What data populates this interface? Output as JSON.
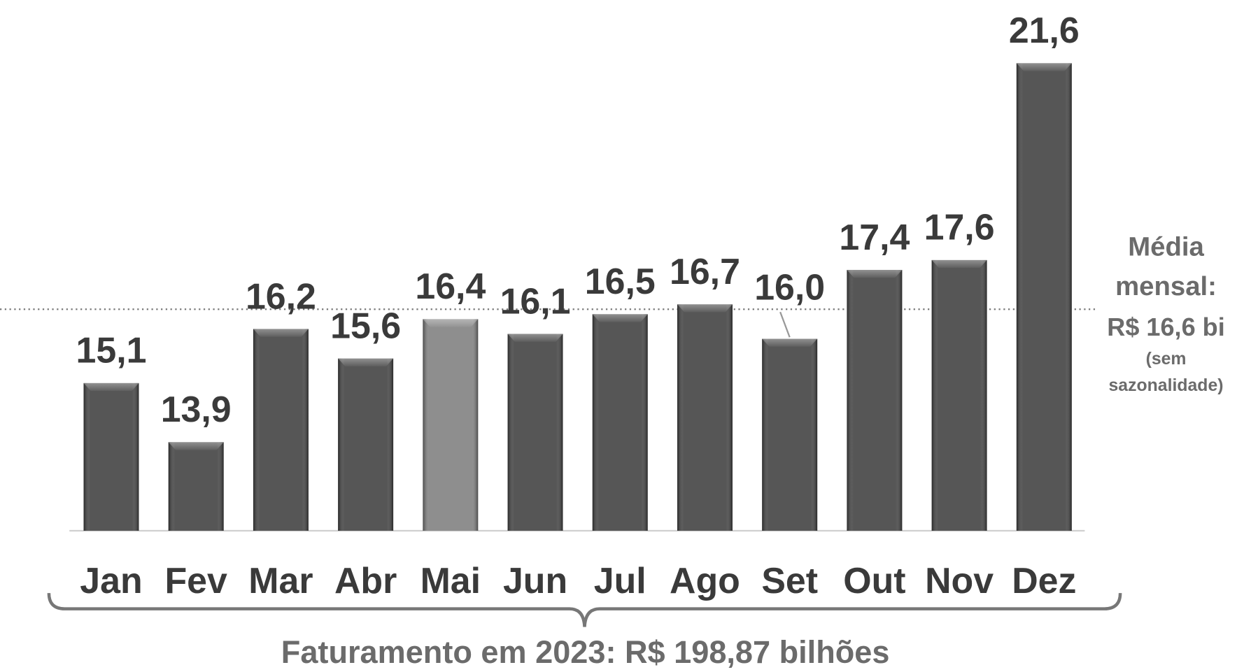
{
  "chart_data": {
    "type": "bar",
    "categories": [
      "Jan",
      "Fev",
      "Mar",
      "Abr",
      "Mai",
      "Jun",
      "Jul",
      "Ago",
      "Set",
      "Out",
      "Nov",
      "Dez"
    ],
    "values": [
      15.1,
      13.9,
      16.2,
      15.6,
      16.4,
      16.1,
      16.5,
      16.7,
      16.0,
      17.4,
      17.6,
      21.6
    ],
    "value_labels": [
      "15,1",
      "13,9",
      "16,2",
      "15,6",
      "16,4",
      "16,1",
      "16,5",
      "16,7",
      "16,0",
      "17,4",
      "17,6",
      "21,6"
    ],
    "colors": [
      "#474747",
      "#474747",
      "#474747",
      "#474747",
      "#848484",
      "#474747",
      "#474747",
      "#474747",
      "#474747",
      "#474747",
      "#474747",
      "#474747"
    ],
    "ylim": [
      12.1,
      21.6
    ],
    "average": 16.6,
    "average_label": [
      "Média",
      "mensal:",
      "R$ 16,6 bi",
      "(sem",
      "sazonalidade)"
    ],
    "footer": "Faturamento em 2023: R$ 198,87 bilhões"
  }
}
